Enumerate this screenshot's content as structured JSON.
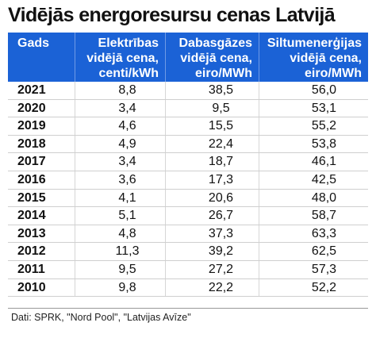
{
  "title": "Vidējās energoresursu cenas Latvijā",
  "table": {
    "headers": {
      "year": "Gads",
      "electricity": [
        "Elektrības",
        "vidējā cena,",
        "centi/kWh"
      ],
      "gas": [
        "Dabasgāzes",
        "vidējā cena,",
        "eiro/MWh"
      ],
      "heat": [
        "Siltumenerģijas",
        "vidējā cena,",
        "eiro/MWh"
      ]
    },
    "rows": [
      {
        "year": "2021",
        "electricity": "8,8",
        "gas": "38,5",
        "heat": "56,0"
      },
      {
        "year": "2020",
        "electricity": "3,4",
        "gas": "9,5",
        "heat": "53,1"
      },
      {
        "year": "2019",
        "electricity": "4,6",
        "gas": "15,5",
        "heat": "55,2"
      },
      {
        "year": "2018",
        "electricity": "4,9",
        "gas": "22,4",
        "heat": "53,8"
      },
      {
        "year": "2017",
        "electricity": "3,4",
        "gas": "18,7",
        "heat": "46,1"
      },
      {
        "year": "2016",
        "electricity": "3,6",
        "gas": "17,3",
        "heat": "42,5"
      },
      {
        "year": "2015",
        "electricity": "4,1",
        "gas": "20,6",
        "heat": "48,0"
      },
      {
        "year": "2014",
        "electricity": "5,1",
        "gas": "26,7",
        "heat": "58,7"
      },
      {
        "year": "2013",
        "electricity": "4,8",
        "gas": "37,3",
        "heat": "63,3"
      },
      {
        "year": "2012",
        "electricity": "11,3",
        "gas": "39,2",
        "heat": "62,5"
      },
      {
        "year": "2011",
        "electricity": "9,5",
        "gas": "27,2",
        "heat": "57,3"
      },
      {
        "year": "2010",
        "electricity": "9,8",
        "gas": "22,2",
        "heat": "52,2"
      }
    ]
  },
  "source": "Dati: SPRK, \"Nord Pool\", \"Latvijas Avīze\"",
  "colors": {
    "header_bg": "#1b62d6",
    "header_text": "#ffffff"
  }
}
